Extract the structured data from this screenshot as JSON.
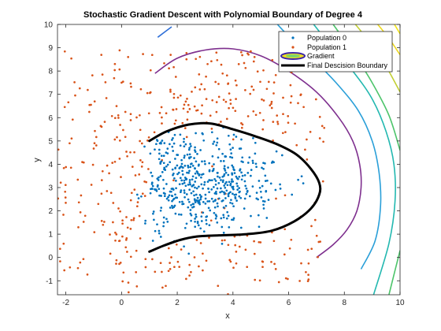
{
  "chart_data": {
    "type": "scatter",
    "title": "Stochastic Gradient Descent with Polynomial Boundary of Degree 4",
    "xlabel": "x",
    "ylabel": "y",
    "xlim": [
      -2.3,
      10
    ],
    "ylim": [
      -1.6,
      10
    ],
    "xticks": [
      "-2",
      "0",
      "2",
      "4",
      "6",
      "8",
      "10"
    ],
    "yticks": [
      "-1",
      "0",
      "1",
      "2",
      "3",
      "4",
      "5",
      "6",
      "7",
      "8",
      "9",
      "10"
    ],
    "grid": false,
    "legend_position": "top-right",
    "colors": {
      "population0": "#0072BD",
      "population1": "#D95319",
      "boundary": "#000000"
    },
    "series": [
      {
        "name": "Population 0",
        "kind": "scatter",
        "distribution": {
          "center": [
            2.6,
            3.1
          ],
          "spread": [
            1.5,
            1.2
          ],
          "count": 520,
          "xrange": [
            -0.5,
            6.6
          ],
          "yrange": [
            -0.1,
            5.7
          ]
        }
      },
      {
        "name": "Population 1",
        "kind": "scatter",
        "distribution": {
          "center": [
            3.0,
            3.6
          ],
          "spread": [
            3.6,
            3.4
          ],
          "count": 430,
          "xrange": [
            -2.3,
            7.3
          ],
          "yrange": [
            -1.6,
            8.9
          ]
        }
      },
      {
        "name": "Gradient",
        "kind": "contour",
        "levels": [
          {
            "color": "#7E2F8E",
            "points": [
              [
                1.2,
                7.9
              ],
              [
                2,
                8.55
              ],
              [
                3,
                8.9
              ],
              [
                4,
                8.95
              ],
              [
                5,
                8.65
              ],
              [
                6,
                8.0
              ],
              [
                7,
                7.1
              ],
              [
                7.8,
                6.0
              ],
              [
                8.3,
                5.0
              ],
              [
                8.55,
                4.0
              ],
              [
                8.6,
                3.0
              ],
              [
                8.45,
                2.0
              ],
              [
                8.1,
                1.2
              ],
              [
                7.6,
                0.55
              ],
              [
                7.0,
                0.0
              ]
            ]
          },
          {
            "color": "#2E6FD8",
            "points": [
              [
                1.3,
                9.45
              ],
              [
                1.8,
                9.9
              ]
            ]
          },
          {
            "color": "#2A9FD8",
            "points": [
              [
                8.6,
                -0.5
              ],
              [
                9.1,
                0.7
              ],
              [
                9.3,
                2.2
              ],
              [
                9.25,
                3.6
              ],
              [
                9.0,
                5.0
              ],
              [
                8.5,
                6.3
              ],
              [
                7.7,
                7.5
              ],
              [
                6.8,
                8.6
              ],
              [
                6.0,
                9.5
              ],
              [
                5.6,
                10.0
              ]
            ]
          },
          {
            "color": "#23B8B0",
            "points": [
              [
                9.05,
                -1.6
              ],
              [
                9.6,
                0.6
              ],
              [
                9.82,
                2.4
              ],
              [
                9.78,
                4.0
              ],
              [
                9.5,
                5.4
              ],
              [
                9.0,
                6.8
              ],
              [
                8.3,
                8.0
              ],
              [
                7.5,
                9.1
              ],
              [
                6.9,
                10.0
              ]
            ]
          },
          {
            "color": "#4CC46A",
            "points": [
              [
                9.6,
                -1.6
              ],
              [
                10,
                0.3
              ]
            ]
          },
          {
            "color": "#4CC46A",
            "points": [
              [
                10,
                4.6
              ],
              [
                9.6,
                6.1
              ],
              [
                8.95,
                7.6
              ],
              [
                8.25,
                8.9
              ],
              [
                7.6,
                10.0
              ]
            ]
          },
          {
            "color": "#C2CF35",
            "points": [
              [
                10,
                7.1
              ],
              [
                9.4,
                8.4
              ],
              [
                8.8,
                9.4
              ],
              [
                8.4,
                10.0
              ]
            ]
          },
          {
            "color": "#EDD81F",
            "points": [
              [
                10,
                8.7
              ],
              [
                9.6,
                9.4
              ],
              [
                9.2,
                10.0
              ]
            ]
          },
          {
            "color": "#F2E61A",
            "points": [
              [
                10,
                9.6
              ],
              [
                9.8,
                10.0
              ]
            ]
          }
        ]
      },
      {
        "name": "Final Descision Boundary",
        "kind": "line",
        "points": [
          [
            1.0,
            5.0
          ],
          [
            1.6,
            5.4
          ],
          [
            2.4,
            5.7
          ],
          [
            3.2,
            5.75
          ],
          [
            4.0,
            5.5
          ],
          [
            4.8,
            5.2
          ],
          [
            5.6,
            4.85
          ],
          [
            6.3,
            4.4
          ],
          [
            6.8,
            3.8
          ],
          [
            7.1,
            3.2
          ],
          [
            7.1,
            2.7
          ],
          [
            6.8,
            2.1
          ],
          [
            6.2,
            1.55
          ],
          [
            5.4,
            1.15
          ],
          [
            4.5,
            1.0
          ],
          [
            3.5,
            0.95
          ],
          [
            2.7,
            0.9
          ],
          [
            2.1,
            0.75
          ],
          [
            1.5,
            0.5
          ],
          [
            1.0,
            0.25
          ]
        ]
      }
    ]
  }
}
